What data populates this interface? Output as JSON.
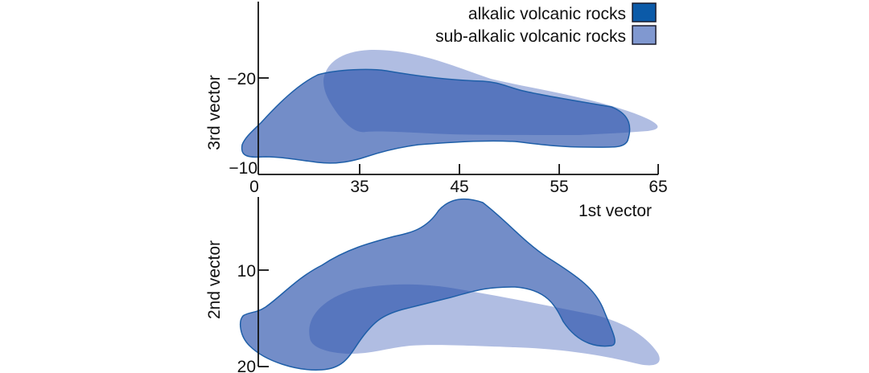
{
  "legend": {
    "items": [
      {
        "label": "alkalic volcanic rocks",
        "color": "#0b5aa8"
      },
      {
        "label": "sub-alkalic volcanic rocks",
        "color": "#8098d0"
      }
    ]
  },
  "top_plot": {
    "xlabel": "1st vector",
    "ylabel": "3rd vector",
    "x_ticks": [
      "0",
      "35",
      "45",
      "55",
      "65"
    ],
    "y_ticks": [
      "−20",
      "−10"
    ]
  },
  "bottom_plot": {
    "ylabel": "2nd vector",
    "y_ticks": [
      "10",
      "20"
    ]
  },
  "colors": {
    "alkalic_fill": "#738dc8",
    "alkalic_outline": "#1f5fa8",
    "sub_alkalic_fill": "#b0bde2",
    "overlap": "#5876bd"
  }
}
